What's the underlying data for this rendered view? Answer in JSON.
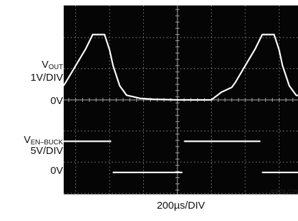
{
  "chart_data": {
    "type": "line",
    "x_scale": "200µs/DIV",
    "x": [
      0,
      0.3,
      0.6,
      0.7,
      1.0,
      1.3,
      1.5,
      1.65,
      1.85,
      2.0,
      2.1,
      2.3,
      2.5,
      2.9,
      3.3,
      4.0,
      4.7,
      5.0,
      5.3,
      5.6,
      5.7,
      6.0,
      6.3,
      6.5,
      6.65,
      6.85,
      7.0,
      7.1,
      7.3,
      7.5,
      8.0
    ],
    "series": [
      {
        "name_main": "V",
        "name_sub": "OUT",
        "scale": "1V/DIV",
        "ground_label": "0V",
        "values": [
          0,
          0.25,
          0.4,
          0.55,
          1.1,
          1.65,
          2.1,
          2.1,
          2.1,
          1.6,
          1.1,
          0.45,
          0.15,
          0.05,
          0.02,
          0,
          0,
          0,
          0.25,
          0.4,
          0.55,
          1.1,
          1.65,
          2.1,
          2.1,
          2.1,
          1.6,
          1.1,
          0.45,
          0.15,
          0.03
        ],
        "color": "#ffffff"
      },
      {
        "name_main": "V",
        "name_sub": "EN–BUCK",
        "scale": "5V/DIV",
        "ground_label": "0V",
        "segments": [
          {
            "x": [
              0,
              2.05
            ],
            "level": 5
          },
          {
            "x": [
              2.05,
              4.15
            ],
            "level": 0
          },
          {
            "x": [
              4.15,
              6.45
            ],
            "level": 5
          },
          {
            "x": [
              6.45,
              8.0
            ],
            "level": 0
          }
        ],
        "color": "#ffffff"
      }
    ],
    "grid": true,
    "divisions": {
      "x": 8,
      "y": 6
    },
    "background": "#050505",
    "grid_color": "#bfbfbf",
    "figure_id": "4080X G28"
  }
}
